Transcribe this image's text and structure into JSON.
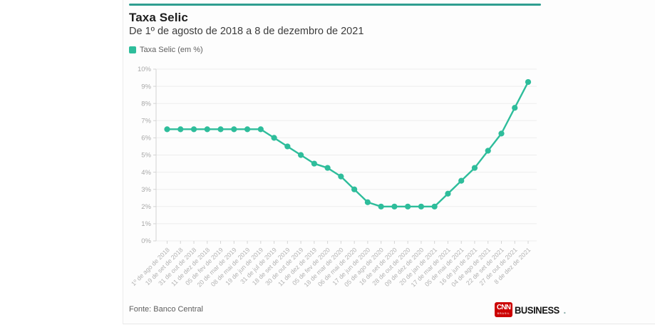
{
  "page": {
    "card": {
      "title": "Taxa Selic",
      "subtitle": "De 1º de agosto de 2018 a 8 de dezembro de 2021",
      "legend": {
        "label": "Taxa Selic (em %)"
      },
      "source": "Fonte: Banco Central",
      "logo": {
        "cnn": "CNN",
        "brasil": "BRASIL",
        "business": "BUSINESS",
        "period": "."
      }
    }
  },
  "colors": {
    "accent_bar": "#2f9e90",
    "line": "#2ebd9b",
    "grid": "#ededed",
    "axis": "#d4d4d4",
    "tick_label": "#a8a8a8",
    "x_label": "#b3b3b3",
    "logo_red": "#cc0000"
  },
  "chart_data": {
    "type": "line",
    "title": "Taxa Selic",
    "subtitle": "De 1º de agosto de 2018 a 8 de dezembro de 2021",
    "legend_entries": [
      "Taxa Selic (em %)"
    ],
    "legend_position": "top-left",
    "grid": true,
    "marker": "circle",
    "xlabel": "",
    "ylabel": "",
    "ylim": [
      0,
      10
    ],
    "yticks": [
      {
        "value": 0,
        "label": "0%"
      },
      {
        "value": 1,
        "label": "1%"
      },
      {
        "value": 2,
        "label": "2%"
      },
      {
        "value": 3,
        "label": "3%"
      },
      {
        "value": 4,
        "label": "4%"
      },
      {
        "value": 5,
        "label": "5%"
      },
      {
        "value": 6,
        "label": "6%"
      },
      {
        "value": 7,
        "label": "7%"
      },
      {
        "value": 8,
        "label": "8%"
      },
      {
        "value": 9,
        "label": "9%"
      },
      {
        "value": 10,
        "label": "10%"
      }
    ],
    "categories": [
      "1º de ago de 2018",
      "19 de set de 2018",
      "31 de out de 2018",
      "11 de dez de 2018",
      "05 de fev de 2019",
      "20 de mar de 2019",
      "08 de mai de 2019",
      "19 de jun de 2019",
      "31 de jul de 2019",
      "18 de set de 2019",
      "30 de out de 2019",
      "11 de dez de 2019",
      "05 de fev de 2020",
      "18 de mar de 2020",
      "06 de mai de 2020",
      "17 de jun de 2020",
      "05 de ago de 2020",
      "16 de set de 2020",
      "28 de out de 2020",
      "09 de dez de 2020",
      "20 de jan de 2021",
      "17 de mar de 2021",
      "05 de mai de 2021",
      "16 de jun de 2021",
      "04 de ago de 2021",
      "22 de set de 2021",
      "27 de out de 2021",
      "8 de dez de 2021"
    ],
    "series": [
      {
        "name": "Taxa Selic (em %)",
        "values": [
          6.5,
          6.5,
          6.5,
          6.5,
          6.5,
          6.5,
          6.5,
          6.5,
          6.0,
          5.5,
          5.0,
          4.5,
          4.25,
          3.75,
          3.0,
          2.25,
          2.0,
          2.0,
          2.0,
          2.0,
          2.0,
          2.75,
          3.5,
          4.25,
          5.25,
          6.25,
          7.75,
          9.25
        ]
      }
    ]
  }
}
